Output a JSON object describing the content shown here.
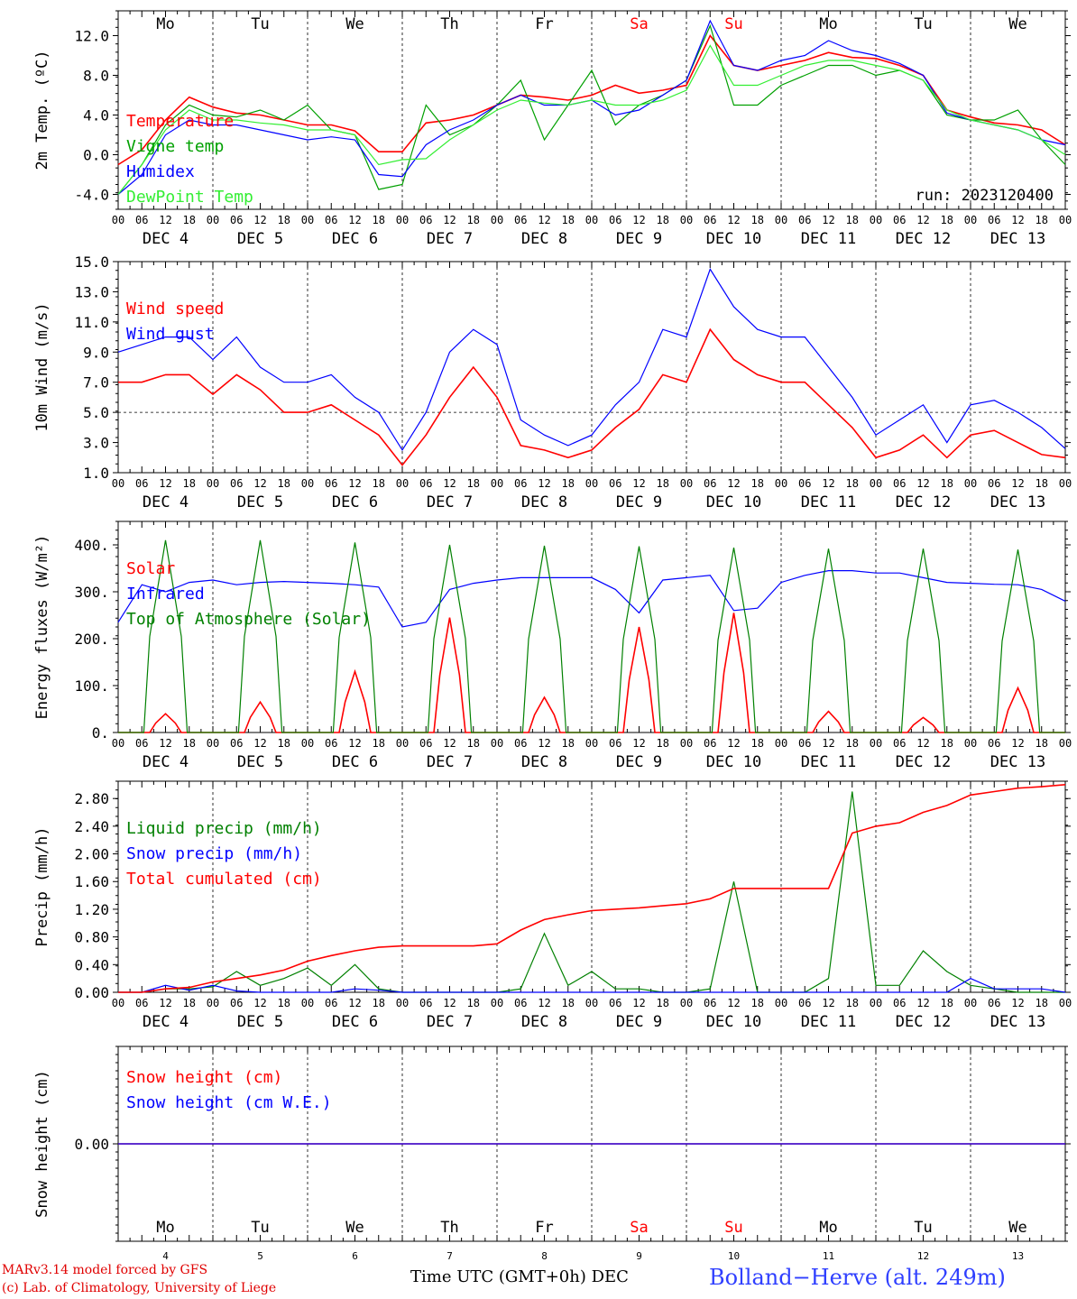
{
  "day_names": [
    {
      "label": "Mo",
      "color": "#000000"
    },
    {
      "label": "Tu",
      "color": "#000000"
    },
    {
      "label": "We",
      "color": "#000000"
    },
    {
      "label": "Th",
      "color": "#000000"
    },
    {
      "label": "Fr",
      "color": "#000000"
    },
    {
      "label": "Sa",
      "color": "#ff0000"
    },
    {
      "label": "Su",
      "color": "#ff0000"
    },
    {
      "label": "Mo",
      "color": "#000000"
    },
    {
      "label": "Tu",
      "color": "#000000"
    },
    {
      "label": "We",
      "color": "#000000"
    }
  ],
  "date_labels": [
    "DEC  4",
    "DEC  5",
    "DEC  6",
    "DEC  7",
    "DEC  8",
    "DEC  9",
    "DEC 10",
    "DEC 11",
    "DEC 12",
    "DEC 13"
  ],
  "bottom_day_numbers": [
    "4",
    "5",
    "6",
    "7",
    "8",
    "9",
    "10",
    "11",
    "12",
    "13"
  ],
  "hour_labels": [
    "00",
    "06",
    "12",
    "18"
  ],
  "footer": {
    "credit_line1": "MARv3.14 model forced by GFS",
    "credit_line2": "(c) Lab. of Climatology, University of Liege",
    "xaxis_title": "Time UTC (GMT+0h) DEC",
    "station": "Bolland−Herve (alt. 249m)"
  },
  "chart_data": [
    {
      "type": "line",
      "ylabel": "2m Temp. (ºC)",
      "yticks": [
        "12.0",
        "8.0",
        "4.0",
        "0.0",
        "-4.0"
      ],
      "ylim": [
        -5.5,
        14.5
      ],
      "annotation": "run: 2023120400",
      "x_unit": "hours since DEC 4 00 UTC",
      "series": [
        {
          "name": "Temperature",
          "color": "#ff0000",
          "x": [
            0,
            6,
            12,
            18,
            24,
            30,
            36,
            42,
            48,
            54,
            60,
            66,
            72,
            78,
            84,
            90,
            96,
            102,
            108,
            114,
            120,
            126,
            132,
            138,
            144,
            150,
            156,
            162,
            168,
            174,
            180,
            186,
            192,
            198,
            204,
            210,
            216,
            222,
            228,
            234,
            240
          ],
          "values": [
            -1,
            0.5,
            3.5,
            5.8,
            4.8,
            4.2,
            4,
            3.5,
            3,
            3,
            2.4,
            0.3,
            0.3,
            3.2,
            3.5,
            4,
            5,
            6,
            5.8,
            5.5,
            6,
            7,
            6.2,
            6.5,
            7,
            12,
            9,
            8.5,
            9,
            9.5,
            10.3,
            9.8,
            9.7,
            9,
            8,
            4.5,
            3.8,
            3.2,
            3,
            2.5,
            1
          ]
        },
        {
          "name": "Vigne temp",
          "color": "#00a000",
          "x": [
            0,
            6,
            12,
            18,
            24,
            30,
            36,
            42,
            48,
            54,
            60,
            66,
            72,
            78,
            84,
            90,
            96,
            102,
            108,
            114,
            120,
            126,
            132,
            138,
            144,
            150,
            156,
            162,
            168,
            174,
            180,
            186,
            192,
            198,
            204,
            210,
            216,
            222,
            228,
            234,
            240
          ],
          "values": [
            -4,
            -1,
            3,
            5,
            4,
            3.8,
            4.5,
            3.5,
            5,
            2.5,
            2,
            -3.5,
            -3,
            5,
            2,
            3,
            5,
            7.5,
            1.5,
            5,
            8.5,
            3,
            5,
            6,
            7.5,
            13,
            5,
            5,
            7,
            8,
            9,
            9,
            8,
            8.5,
            7.5,
            4,
            3.5,
            3.5,
            4.5,
            1.5,
            -1
          ]
        },
        {
          "name": "Humidex",
          "color": "#0000ff",
          "x": [
            0,
            6,
            12,
            18,
            24,
            30,
            36,
            42,
            48,
            54,
            60,
            66,
            72,
            78,
            84,
            90,
            96,
            102,
            108,
            114,
            120,
            126,
            132,
            138,
            144,
            150,
            156,
            162,
            168,
            174,
            180,
            186,
            192,
            198,
            204,
            210,
            216,
            222,
            228,
            234,
            240
          ],
          "values": [
            -4,
            -2,
            2,
            3.5,
            3,
            3,
            2.5,
            2,
            1.5,
            1.8,
            1.5,
            -2,
            -2.2,
            1,
            2.5,
            3.5,
            5,
            6,
            5,
            5,
            5.5,
            4,
            4.5,
            6,
            7.5,
            13.5,
            9,
            8.5,
            9.5,
            10,
            11.5,
            10.5,
            10,
            9.2,
            8,
            4.2,
            3.5,
            3,
            2.5,
            1.5,
            1
          ]
        },
        {
          "name": "DewPoint Temp",
          "color": "#33ee33",
          "x": [
            0,
            6,
            12,
            18,
            24,
            30,
            36,
            42,
            48,
            54,
            60,
            66,
            72,
            78,
            84,
            90,
            96,
            102,
            108,
            114,
            120,
            126,
            132,
            138,
            144,
            150,
            156,
            162,
            168,
            174,
            180,
            186,
            192,
            198,
            204,
            210,
            216,
            222,
            228,
            234,
            240
          ],
          "values": [
            -4,
            -1,
            2.5,
            4.5,
            3.5,
            3.5,
            3.2,
            3,
            2.5,
            2.5,
            2,
            -1,
            -0.5,
            -0.4,
            1.5,
            3,
            4.5,
            5.5,
            5.2,
            5,
            5.5,
            5,
            5,
            5.5,
            6.5,
            11,
            7,
            7,
            8,
            9,
            9.5,
            9.5,
            9,
            8.5,
            7.5,
            4.5,
            3.5,
            3,
            2.5,
            1.5,
            0
          ]
        }
      ]
    },
    {
      "type": "line",
      "ylabel": "10m Wind (m/s)",
      "yticks": [
        "15.0",
        "13.0",
        "11.0",
        "9.0",
        "7.0",
        "5.0",
        "3.0",
        "1.0"
      ],
      "ylim": [
        1,
        15
      ],
      "reference_line": 5,
      "x_unit": "hours since DEC 4 00 UTC",
      "series": [
        {
          "name": "Wind speed",
          "color": "#ff0000",
          "x": [
            0,
            6,
            12,
            18,
            24,
            30,
            36,
            42,
            48,
            54,
            60,
            66,
            72,
            78,
            84,
            90,
            96,
            102,
            108,
            114,
            120,
            126,
            132,
            138,
            144,
            150,
            156,
            162,
            168,
            174,
            180,
            186,
            192,
            198,
            204,
            210,
            216,
            222,
            228,
            234,
            240
          ],
          "values": [
            7,
            7,
            7.5,
            7.5,
            6.2,
            7.5,
            6.5,
            5,
            5,
            5.5,
            4.5,
            3.5,
            1.5,
            3.5,
            6,
            8,
            6,
            2.8,
            2.5,
            2,
            2.5,
            4,
            5.2,
            7.5,
            7,
            10.5,
            8.5,
            7.5,
            7,
            7,
            5.5,
            4,
            2,
            2.5,
            3.5,
            2,
            3.5,
            3.8,
            3,
            2.2,
            2
          ]
        },
        {
          "name": "Wind gust",
          "color": "#0000ff",
          "x": [
            0,
            6,
            12,
            18,
            24,
            30,
            36,
            42,
            48,
            54,
            60,
            66,
            72,
            78,
            84,
            90,
            96,
            102,
            108,
            114,
            120,
            126,
            132,
            138,
            144,
            150,
            156,
            162,
            168,
            174,
            180,
            186,
            192,
            198,
            204,
            210,
            216,
            222,
            228,
            234,
            240
          ],
          "values": [
            9,
            9.5,
            10,
            10,
            8.5,
            10,
            8,
            7,
            7,
            7.5,
            6,
            5,
            2.5,
            5,
            9,
            10.5,
            9.5,
            4.5,
            3.5,
            2.8,
            3.5,
            5.5,
            7,
            10.5,
            10,
            14.5,
            12,
            10.5,
            10,
            10,
            8,
            6,
            3.5,
            4.5,
            5.5,
            3,
            5.5,
            5.8,
            5,
            4,
            2.6
          ]
        }
      ]
    },
    {
      "type": "line",
      "ylabel": "Energy fluxes (W/m²)",
      "yticks": [
        "400.",
        "300.",
        "200.",
        "100.",
        "0."
      ],
      "ylim": [
        0,
        450
      ],
      "series": [
        {
          "name": "Solar",
          "color": "#ff0000",
          "day_peaks": [
            40,
            65,
            130,
            245,
            75,
            225,
            255,
            45,
            32,
            95
          ]
        },
        {
          "name": "Infrared",
          "color": "#0000ff",
          "x": [
            0,
            6,
            12,
            18,
            24,
            30,
            36,
            42,
            48,
            54,
            60,
            66,
            72,
            78,
            84,
            90,
            96,
            102,
            108,
            114,
            120,
            126,
            132,
            138,
            144,
            150,
            156,
            162,
            168,
            174,
            180,
            186,
            192,
            198,
            204,
            210,
            216,
            222,
            228,
            234,
            240
          ],
          "values": [
            235,
            315,
            300,
            320,
            325,
            315,
            320,
            322,
            320,
            318,
            315,
            310,
            225,
            235,
            305,
            318,
            325,
            330,
            330,
            330,
            330,
            305,
            255,
            325,
            330,
            335,
            260,
            265,
            320,
            335,
            345,
            345,
            340,
            340,
            330,
            320,
            318,
            316,
            315,
            305,
            280
          ]
        },
        {
          "name": "Top of Atmosphere (Solar)",
          "color": "#008000",
          "day_peaks": [
            410,
            410,
            405,
            400,
            398,
            397,
            394,
            392,
            392,
            390
          ]
        }
      ]
    },
    {
      "type": "line",
      "ylabel": "Precip (mm/h)",
      "yticks": [
        "2.80",
        "2.40",
        "2.00",
        "1.60",
        "1.20",
        "0.80",
        "0.40",
        "0.00"
      ],
      "ylim": [
        0,
        3.05
      ],
      "series": [
        {
          "name": "Liquid precip (mm/h)",
          "color": "#008000",
          "x": [
            0,
            6,
            12,
            18,
            24,
            30,
            36,
            42,
            48,
            54,
            60,
            66,
            72,
            78,
            84,
            90,
            96,
            102,
            108,
            114,
            120,
            126,
            132,
            138,
            144,
            150,
            156,
            162,
            168,
            174,
            180,
            186,
            192,
            198,
            204,
            210,
            216,
            222,
            228,
            234,
            240
          ],
          "values": [
            0,
            0,
            0.05,
            0.05,
            0.08,
            0.3,
            0.1,
            0.2,
            0.35,
            0.1,
            0.4,
            0.05,
            0,
            0,
            0,
            0,
            0,
            0.05,
            0.85,
            0.1,
            0.3,
            0.05,
            0.05,
            0,
            0,
            0.05,
            1.6,
            0,
            0,
            0,
            0.2,
            2.9,
            0.1,
            0.1,
            0.6,
            0.3,
            0.1,
            0.05,
            0,
            0,
            0
          ]
        },
        {
          "name": "Snow precip (mm/h)",
          "color": "#0000ff",
          "x": [
            0,
            6,
            12,
            18,
            24,
            30,
            36,
            42,
            48,
            54,
            60,
            66,
            72,
            78,
            84,
            90,
            96,
            102,
            108,
            114,
            120,
            126,
            132,
            138,
            144,
            150,
            156,
            162,
            168,
            174,
            180,
            186,
            192,
            198,
            204,
            210,
            216,
            222,
            228,
            234,
            240
          ],
          "values": [
            0,
            0,
            0.1,
            0.03,
            0.1,
            0.02,
            0,
            0,
            0,
            0,
            0.05,
            0.03,
            0,
            0,
            0,
            0,
            0,
            0,
            0,
            0,
            0,
            0,
            0,
            0,
            0,
            0,
            0,
            0,
            0,
            0,
            0,
            0,
            0,
            0,
            0,
            0,
            0.2,
            0.05,
            0.05,
            0.05,
            0
          ]
        },
        {
          "name": "Total cumulated (cm)",
          "color": "#ff0000",
          "x": [
            0,
            6,
            12,
            18,
            24,
            30,
            36,
            42,
            48,
            54,
            60,
            66,
            72,
            78,
            84,
            90,
            96,
            102,
            108,
            114,
            120,
            126,
            132,
            138,
            144,
            150,
            156,
            162,
            168,
            174,
            180,
            186,
            192,
            198,
            204,
            210,
            216,
            222,
            228,
            234,
            240
          ],
          "values": [
            0,
            0,
            0.05,
            0.07,
            0.15,
            0.2,
            0.25,
            0.32,
            0.45,
            0.53,
            0.6,
            0.65,
            0.67,
            0.67,
            0.67,
            0.67,
            0.7,
            0.9,
            1.05,
            1.12,
            1.18,
            1.2,
            1.22,
            1.25,
            1.28,
            1.35,
            1.5,
            1.5,
            1.5,
            1.5,
            1.5,
            2.3,
            2.4,
            2.45,
            2.6,
            2.7,
            2.85,
            2.9,
            2.95,
            2.97,
            3
          ]
        }
      ]
    },
    {
      "type": "line",
      "ylabel": "Snow height (cm)",
      "yticks": [
        "0.00"
      ],
      "ylim": [
        -1,
        1
      ],
      "series": [
        {
          "name": "Snow height (cm)",
          "color": "#ff0000",
          "x": [
            0,
            240
          ],
          "values": [
            0,
            0
          ]
        },
        {
          "name": "Snow height (cm W.E.)",
          "color": "#0000ff",
          "x": [
            0,
            240
          ],
          "values": [
            0,
            0
          ]
        }
      ]
    }
  ]
}
